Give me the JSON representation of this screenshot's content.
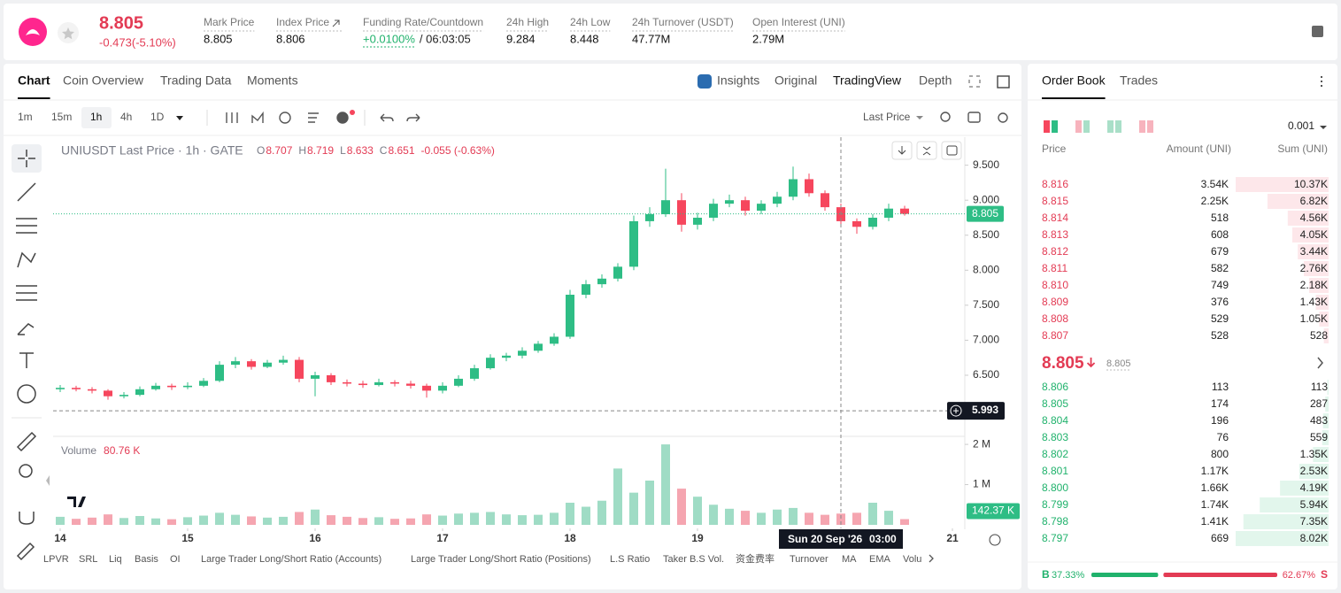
{
  "header": {
    "price": "8.805",
    "change": "-0.473(-5.10%)",
    "stats": [
      {
        "label": "Mark Price",
        "value": "8.805"
      },
      {
        "label": "Index Price",
        "value": "8.806"
      },
      {
        "label": "Funding Rate/Countdown",
        "value": "+0.0100%",
        "extra": "/ 06:03:05"
      },
      {
        "label": "24h High",
        "value": "9.284"
      },
      {
        "label": "24h Low",
        "value": "8.448"
      },
      {
        "label": "24h Turnover (USDT)",
        "value": "47.77M"
      },
      {
        "label": "Open Interest (UNI)",
        "value": "2.79M"
      }
    ]
  },
  "tabs": [
    "Chart",
    "Coin Overview",
    "Trading Data",
    "Moments"
  ],
  "views": [
    "Insights",
    "Original",
    "TradingView",
    "Depth"
  ],
  "intervals": [
    "1m",
    "15m",
    "1h",
    "4h",
    "1D"
  ],
  "price_type": "Last Price",
  "legend": {
    "symbol": "UNIUSDT Last Price · 1h · GATE",
    "ohlc": [
      {
        "k": "O",
        "v": "8.707"
      },
      {
        "k": "H",
        "v": "8.719"
      },
      {
        "k": "L",
        "v": "8.633"
      },
      {
        "k": "C",
        "v": "8.651"
      }
    ],
    "change": "-0.055 (-0.63%)",
    "volume_title": "Volume",
    "volume_value": "80.76 K"
  },
  "indicators": [
    "LPVR",
    "SRL",
    "Liq",
    "Basis",
    "OI",
    "Large Trader Long/Short Ratio (Accounts)",
    "Large Trader Long/Short Ratio (Positions)",
    "L.S Ratio",
    "Taker B.S Vol.",
    "资金费率",
    "Turnover",
    "MA",
    "EMA",
    "Volu"
  ],
  "chart_data": {
    "type": "candlestick",
    "candles": [
      [
        6.3,
        6.36,
        6.26,
        6.32
      ],
      [
        6.32,
        6.35,
        6.27,
        6.3
      ],
      [
        6.3,
        6.33,
        6.24,
        6.28
      ],
      [
        6.28,
        6.3,
        6.15,
        6.2
      ],
      [
        6.2,
        6.26,
        6.17,
        6.22
      ],
      [
        6.22,
        6.34,
        6.2,
        6.3
      ],
      [
        6.3,
        6.39,
        6.28,
        6.35
      ],
      [
        6.35,
        6.38,
        6.29,
        6.33
      ],
      [
        6.33,
        6.4,
        6.3,
        6.35
      ],
      [
        6.35,
        6.46,
        6.33,
        6.42
      ],
      [
        6.42,
        6.7,
        6.4,
        6.65
      ],
      [
        6.65,
        6.76,
        6.6,
        6.7
      ],
      [
        6.7,
        6.73,
        6.58,
        6.62
      ],
      [
        6.62,
        6.72,
        6.6,
        6.68
      ],
      [
        6.68,
        6.78,
        6.65,
        6.72
      ],
      [
        6.72,
        6.76,
        6.4,
        6.45
      ],
      [
        6.45,
        6.55,
        6.2,
        6.5
      ],
      [
        6.5,
        6.53,
        6.36,
        6.4
      ],
      [
        6.4,
        6.44,
        6.34,
        6.38
      ],
      [
        6.38,
        6.42,
        6.32,
        6.36
      ],
      [
        6.36,
        6.45,
        6.34,
        6.4
      ],
      [
        6.4,
        6.43,
        6.34,
        6.38
      ],
      [
        6.38,
        6.42,
        6.31,
        6.35
      ],
      [
        6.35,
        6.38,
        6.18,
        6.28
      ],
      [
        6.28,
        6.4,
        6.24,
        6.35
      ],
      [
        6.35,
        6.5,
        6.33,
        6.45
      ],
      [
        6.45,
        6.65,
        6.42,
        6.6
      ],
      [
        6.6,
        6.8,
        6.58,
        6.75
      ],
      [
        6.75,
        6.82,
        6.7,
        6.78
      ],
      [
        6.78,
        6.9,
        6.74,
        6.85
      ],
      [
        6.85,
        6.99,
        6.82,
        6.95
      ],
      [
        6.95,
        7.1,
        6.92,
        7.05
      ],
      [
        7.05,
        7.72,
        7.02,
        7.65
      ],
      [
        7.65,
        7.86,
        7.6,
        7.8
      ],
      [
        7.8,
        7.94,
        7.75,
        7.88
      ],
      [
        7.88,
        8.1,
        7.84,
        8.05
      ],
      [
        8.05,
        8.78,
        8.0,
        8.7
      ],
      [
        8.7,
        8.9,
        8.62,
        8.8
      ],
      [
        8.8,
        9.45,
        8.76,
        9.0
      ],
      [
        9.0,
        9.1,
        8.55,
        8.65
      ],
      [
        8.65,
        8.82,
        8.58,
        8.75
      ],
      [
        8.75,
        9.02,
        8.7,
        8.95
      ],
      [
        8.95,
        9.08,
        8.9,
        9.0
      ],
      [
        9.0,
        9.05,
        8.78,
        8.85
      ],
      [
        8.85,
        9.0,
        8.8,
        8.95
      ],
      [
        8.95,
        9.12,
        8.9,
        9.05
      ],
      [
        9.05,
        9.48,
        9.0,
        9.3
      ],
      [
        9.3,
        9.38,
        9.05,
        9.1
      ],
      [
        9.1,
        9.14,
        8.85,
        8.9
      ],
      [
        8.9,
        8.95,
        8.66,
        8.7
      ],
      [
        8.7,
        8.74,
        8.52,
        8.62
      ],
      [
        8.62,
        8.8,
        8.58,
        8.75
      ],
      [
        8.75,
        8.95,
        8.7,
        8.88
      ],
      [
        8.88,
        8.92,
        8.78,
        8.805
      ]
    ],
    "volumes": [
      200000,
      150000,
      180000,
      260000,
      170000,
      220000,
      160000,
      140000,
      190000,
      230000,
      300000,
      250000,
      210000,
      180000,
      200000,
      320000,
      380000,
      240000,
      200000,
      170000,
      190000,
      150000,
      160000,
      260000,
      230000,
      280000,
      300000,
      320000,
      260000,
      240000,
      250000,
      300000,
      550000,
      450000,
      600000,
      1400000,
      800000,
      1100000,
      2000000,
      900000,
      700000,
      500000,
      400000,
      350000,
      300000,
      380000,
      420000,
      300000,
      250000,
      280000,
      300000,
      550000,
      350000,
      142370
    ],
    "current_volume_label": "142.37 K",
    "up_color": "#2ebd85",
    "down_color": "#f6465d",
    "up_volume_color": "#9fdcc5",
    "down_volume_color": "#f5a5b0",
    "ylim": [
      5.64,
      9.9
    ],
    "yticks": [
      {
        "value": 6.5,
        "label": "6.500"
      },
      {
        "value": 7,
        "label": "7.000"
      },
      {
        "value": 7.5,
        "label": "7.500"
      },
      {
        "value": 8,
        "label": "8.000"
      },
      {
        "value": 8.5,
        "label": "8.500"
      },
      {
        "value": 9,
        "label": "9.000"
      },
      {
        "value": 9.5,
        "label": "9.500"
      }
    ],
    "volume_ylim": [
      0,
      2200000
    ],
    "volume_yticks": [
      {
        "value": 1000000,
        "label": "1 M"
      },
      {
        "value": 2000000,
        "label": "2 M"
      }
    ],
    "xticks": [
      0,
      8,
      16,
      24,
      32,
      40,
      56
    ],
    "xtick_labels": [
      "14",
      "15",
      "16",
      "17",
      "18",
      "19",
      "21"
    ],
    "last_price": {
      "value": 8.805,
      "label": "8.805"
    },
    "crosshair": {
      "x": 49,
      "price": {
        "value": 5.993,
        "label": "5.993"
      },
      "date": "Sun 20 Sep '26",
      "time": "03:00"
    }
  },
  "order_book": {
    "tabs": [
      "Order Book",
      "Trades"
    ],
    "precision": "0.001",
    "headers": [
      "Price",
      "Amount (UNI)",
      "Sum (UNI)"
    ],
    "asks": {
      "prices": [
        "8.816",
        "8.815",
        "8.814",
        "8.813",
        "8.812",
        "8.811",
        "8.810",
        "8.809",
        "8.808",
        "8.807"
      ],
      "amounts": [
        "3.54K",
        "2.25K",
        "518",
        "608",
        "679",
        "582",
        "749",
        "376",
        "529",
        "528"
      ],
      "sums": [
        "10.37K",
        "6.82K",
        "4.56K",
        "4.05K",
        "3.44K",
        "2.76K",
        "2.18K",
        "1.43K",
        "1.05K",
        "528"
      ],
      "sum_values": [
        10370,
        6820,
        4560,
        4050,
        3440,
        2760,
        2180,
        1430,
        1050,
        528
      ]
    },
    "mid": {
      "price": "8.805",
      "mark": "8.805"
    },
    "bids": {
      "prices": [
        "8.806",
        "8.805",
        "8.804",
        "8.803",
        "8.802",
        "8.801",
        "8.800",
        "8.799",
        "8.798",
        "8.797"
      ],
      "amounts": [
        "113",
        "174",
        "196",
        "76",
        "800",
        "1.17K",
        "1.66K",
        "1.74K",
        "1.41K",
        "669"
      ],
      "sums": [
        "113",
        "287",
        "483",
        "559",
        "1.35K",
        "2.53K",
        "4.19K",
        "5.94K",
        "7.35K",
        "8.02K"
      ],
      "sum_values": [
        113,
        287,
        483,
        559,
        1350,
        2530,
        4190,
        5940,
        7350,
        8020
      ]
    },
    "ratio": {
      "buy": {
        "label": "B",
        "value": 37.33,
        "value_label": "37.33%"
      },
      "sell": {
        "label": "S",
        "value": 62.67,
        "value_label": "62.67%"
      }
    }
  }
}
